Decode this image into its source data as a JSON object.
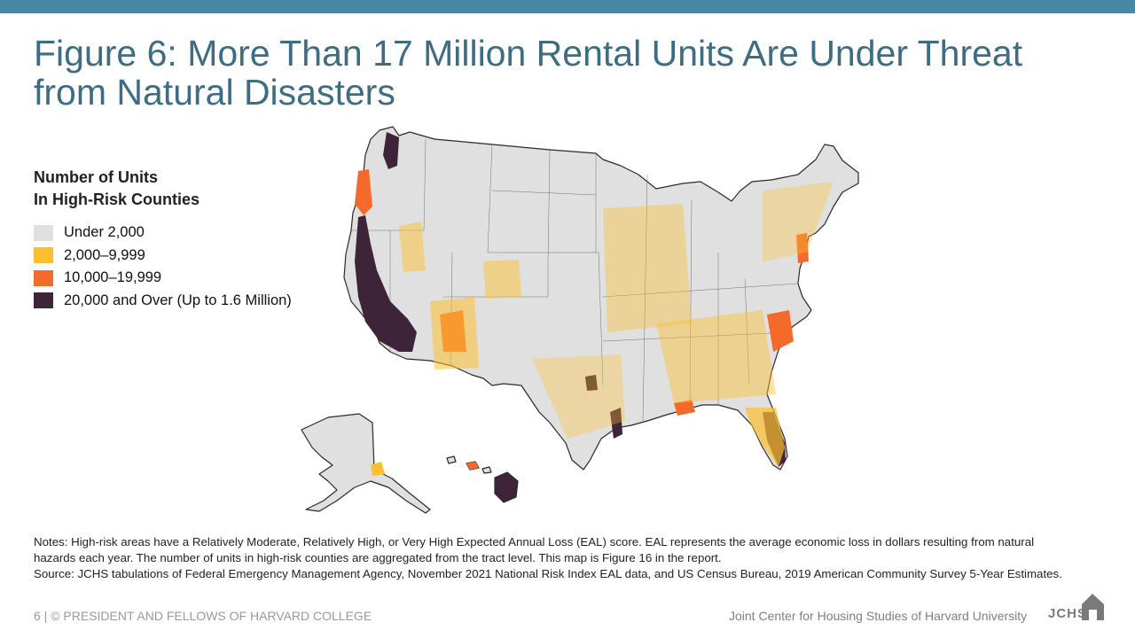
{
  "header": {
    "title_line1": "Figure 6: More Than 17 Million Rental Units Are Under Threat",
    "title_line2": "from Natural Disasters"
  },
  "legend": {
    "title_line1": "Number of Units",
    "title_line2": "In High-Risk Counties",
    "items": [
      {
        "label": "Under 2,000",
        "color": "#e0e0e0"
      },
      {
        "label": "2,000–9,999",
        "color": "#fcbf30"
      },
      {
        "label": "10,000–19,999",
        "color": "#f46a2a"
      },
      {
        "label": "20,000 and Over (Up to 1.6 Million)",
        "color": "#3d2438"
      }
    ]
  },
  "notes": {
    "notes_text": "Notes: High-risk areas have a Relatively Moderate, Relatively High, or Very High Expected Annual Loss (EAL) score. EAL represents the average economic loss in dollars resulting from natural hazards each year. The number of units in high-risk counties are aggregated from the tract level. This map is Figure 16 in the report.",
    "source_text": "Source: JCHS tabulations of Federal Emergency Management Agency, November 2021 National Risk Index EAL data, and US Census Bureau, 2019 American Community Survey 5-Year Estimates."
  },
  "footer": {
    "left": "6 | © PRESIDENT AND FELLOWS OF HARVARD COLLEGE",
    "right": "Joint Center for Housing Studies of Harvard University",
    "logo_text": "JCHS"
  },
  "colors": {
    "top_bar": "#4a86a6",
    "title": "#3d6d82",
    "base": "#e0e0e0",
    "border": "#222222"
  }
}
